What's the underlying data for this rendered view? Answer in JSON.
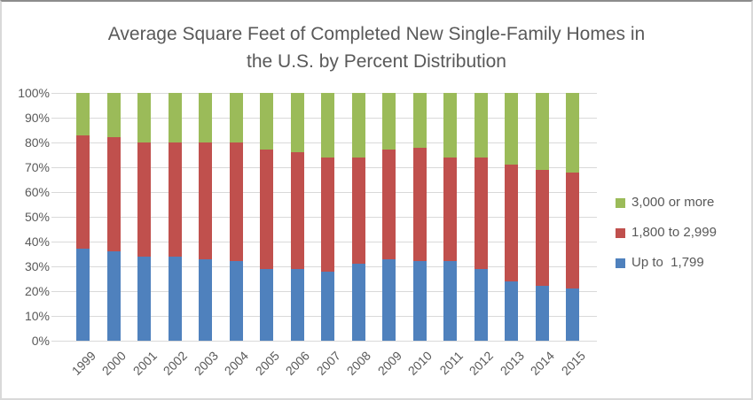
{
  "title": {
    "line1": "Average Square Feet of Completed New Single-Family Homes in",
    "line2": "the U.S. by Percent Distribution"
  },
  "y_axis": {
    "labels": [
      "100%",
      "90%",
      "80%",
      "70%",
      "60%",
      "50%",
      "40%",
      "30%",
      "20%",
      "10%",
      "0%"
    ]
  },
  "legend": [
    {
      "label": "3,000 or more",
      "color": "#9BBB59"
    },
    {
      "label": "1,800 to 2,999",
      "color": "#C0504D"
    },
    {
      "label": "Up to  1,799",
      "color": "#4F81BD"
    }
  ],
  "colors": {
    "text": "#595959",
    "gridline": "#D9D9D9",
    "blue": "#4F81BD",
    "red": "#C0504D",
    "green": "#9BBB59"
  },
  "chart_data": {
    "type": "bar",
    "stacked": true,
    "title": "Average Square Feet of Completed New Single-Family Homes in the U.S. by Percent Distribution",
    "categories": [
      "1999",
      "2000",
      "2001",
      "2002",
      "2003",
      "2004",
      "2005",
      "2006",
      "2007",
      "2008",
      "2009",
      "2010",
      "2011",
      "2012",
      "2013",
      "2014",
      "2015"
    ],
    "series": [
      {
        "name": "Up to  1,799",
        "color": "#4F81BD",
        "values": [
          37,
          36,
          34,
          34,
          33,
          32,
          29,
          29,
          28,
          31,
          33,
          32,
          32,
          29,
          24,
          22,
          21
        ]
      },
      {
        "name": "1,800 to 2,999",
        "color": "#C0504D",
        "values": [
          46,
          46,
          46,
          46,
          47,
          48,
          48,
          47,
          46,
          43,
          44,
          46,
          42,
          45,
          47,
          47,
          47
        ]
      },
      {
        "name": "3,000 or more",
        "color": "#9BBB59",
        "values": [
          17,
          18,
          20,
          20,
          20,
          20,
          23,
          24,
          26,
          26,
          23,
          22,
          26,
          26,
          29,
          31,
          32
        ]
      }
    ],
    "ylabel": "",
    "xlabel": "",
    "ylim": [
      0,
      100
    ],
    "ytick_step": 10,
    "ytick_format": "percent",
    "grid": true,
    "legend_position": "right"
  }
}
